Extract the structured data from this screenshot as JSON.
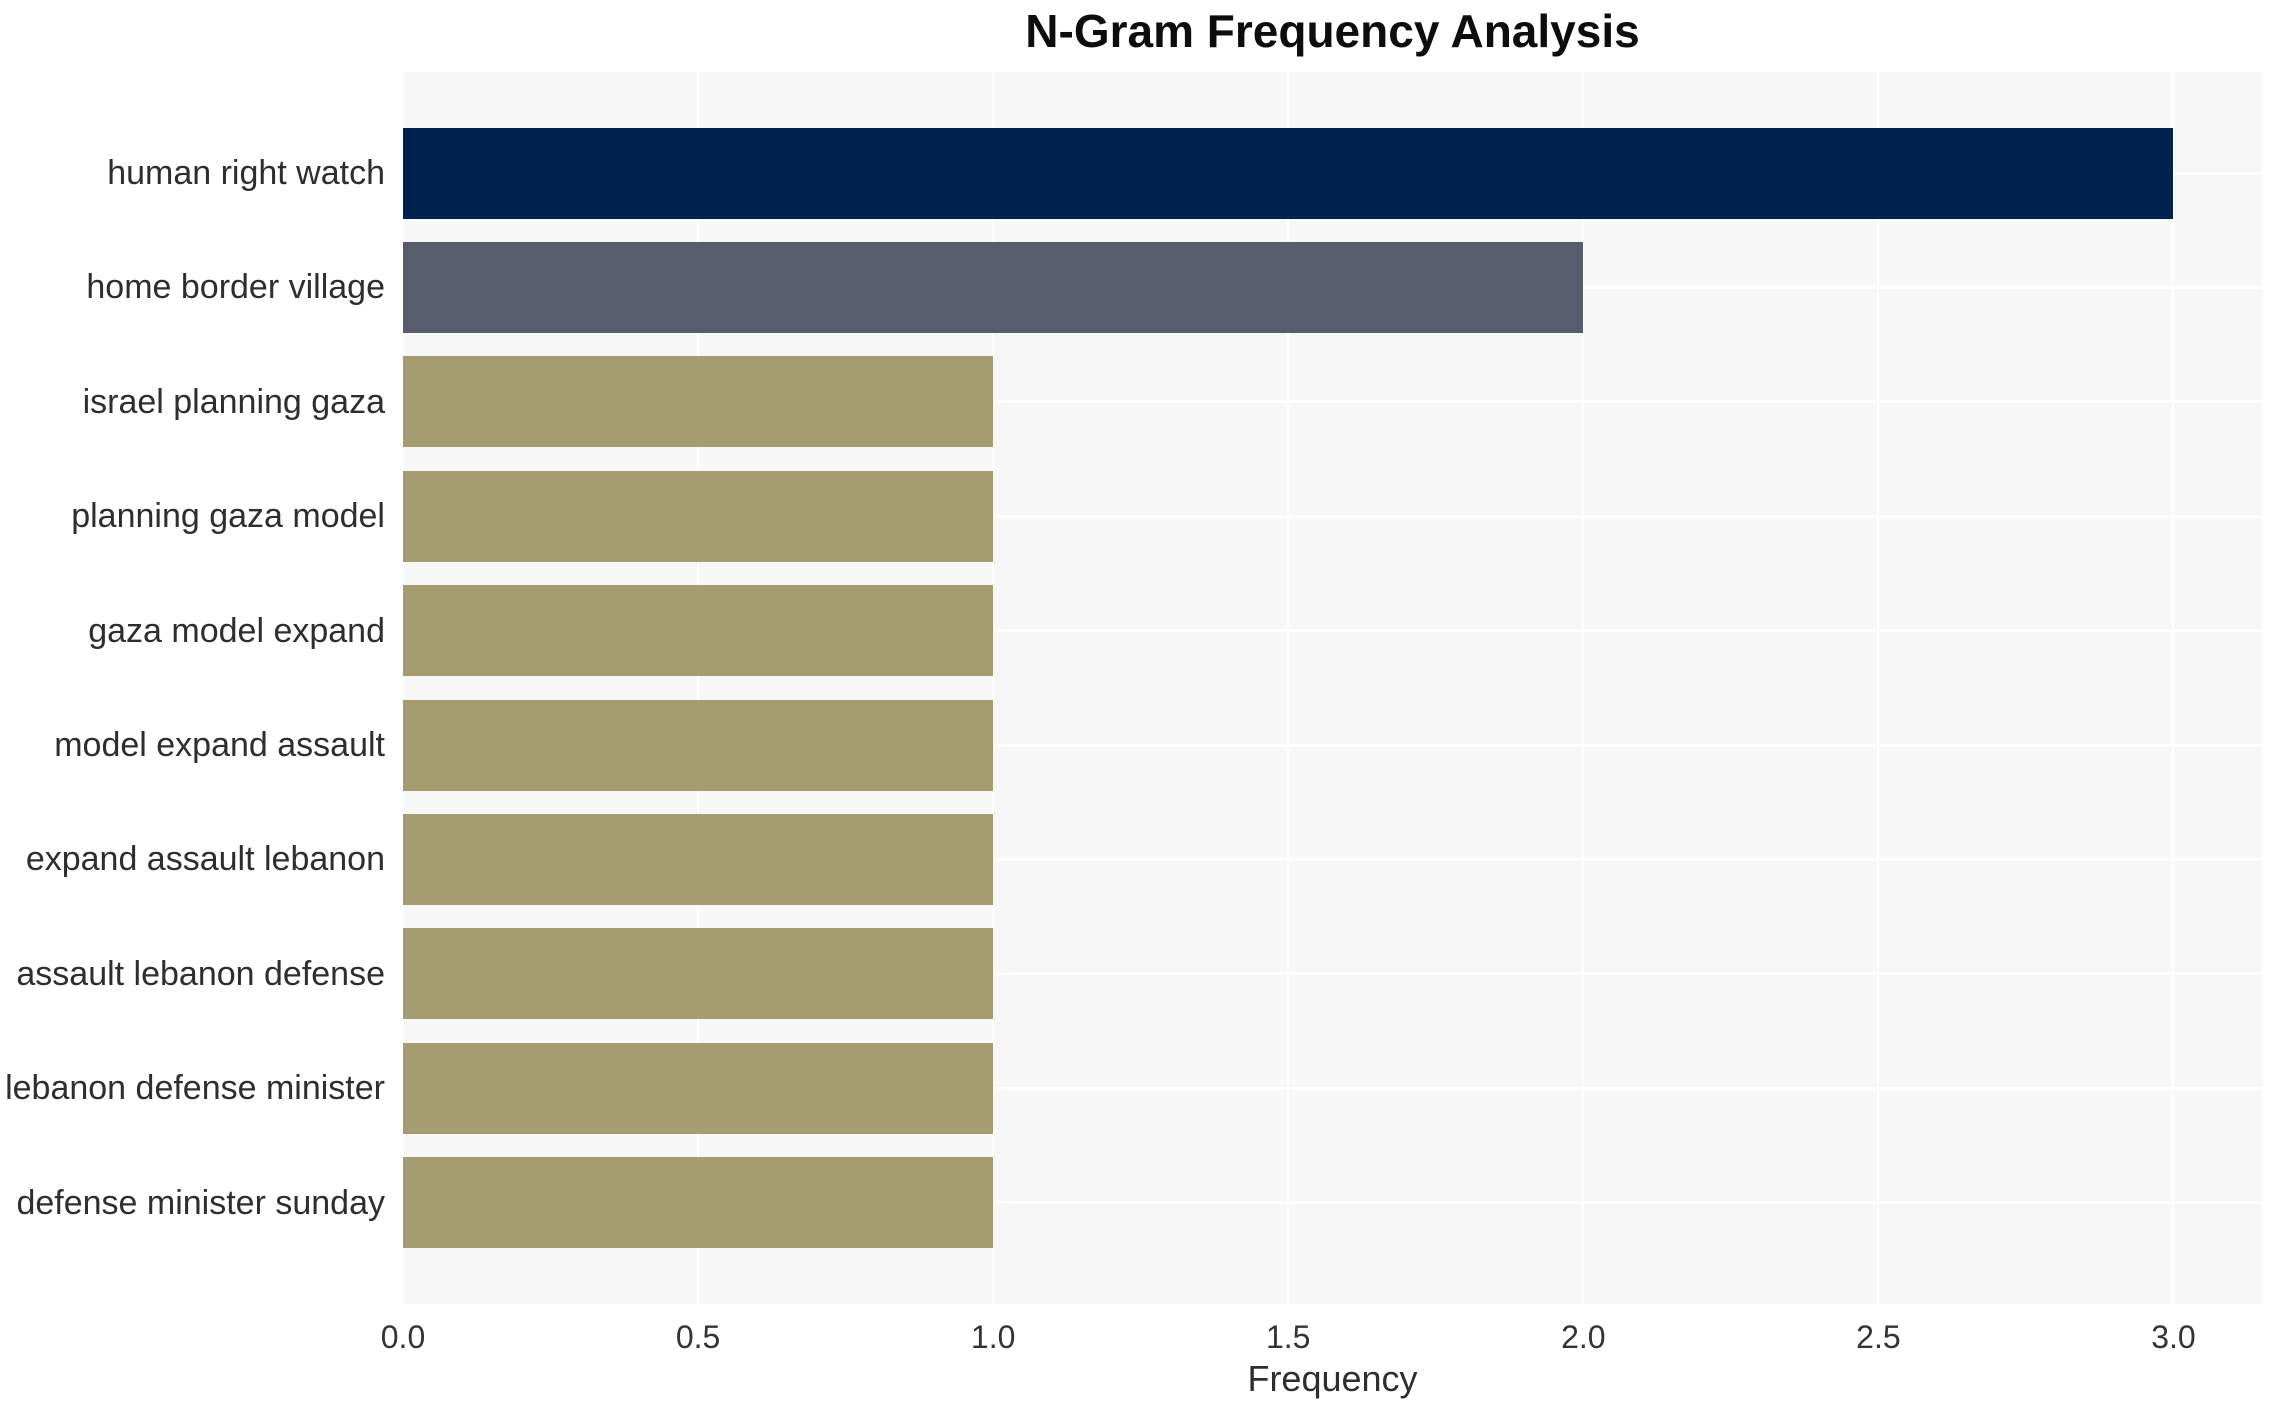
{
  "chart_data": {
    "type": "bar",
    "orientation": "horizontal",
    "title": "N-Gram Frequency Analysis",
    "xlabel": "Frequency",
    "ylabel": "",
    "categories": [
      "human right watch",
      "home border village",
      "israel planning gaza",
      "planning gaza model",
      "gaza model expand",
      "model expand assault",
      "expand assault lebanon",
      "assault lebanon defense",
      "lebanon defense minister",
      "defense minister sunday"
    ],
    "values": [
      3,
      2,
      1,
      1,
      1,
      1,
      1,
      1,
      1,
      1
    ],
    "bar_colors": [
      "#00224e",
      "#575d6c",
      "#a59c70",
      "#a59c70",
      "#a59c70",
      "#a59c70",
      "#a59c70",
      "#a59c70",
      "#a59c70",
      "#a59c70"
    ],
    "xlim": [
      0,
      3.15
    ],
    "x_ticks": [
      0,
      0.5,
      1,
      1.5,
      2,
      2.5,
      3
    ],
    "x_tick_labels": [
      "0.0",
      "0.5",
      "1.0",
      "1.5",
      "2.0",
      "2.5",
      "3.0"
    ],
    "grid": true,
    "legend_position": "none"
  },
  "style": {
    "figure_bg": "#ffffff",
    "plot_bg": "#f7f7f7",
    "grid_color": "#ffffff",
    "title_color": "#0d0d0d",
    "category_label_color": "#2e2e2e",
    "tick_label_color": "#333333",
    "axis_label_color": "#2e2e2e"
  }
}
